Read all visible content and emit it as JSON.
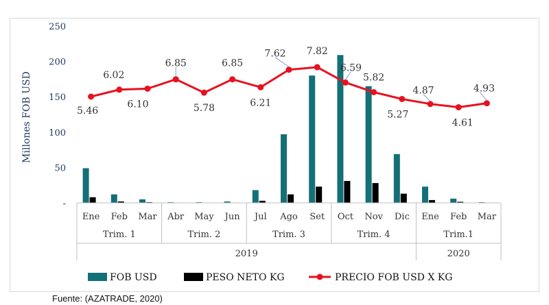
{
  "source_note": "Fuente: (AZATRADE, 2020)",
  "colors": {
    "fob": "#137076",
    "peso": "#000000",
    "precio": "#e8111f",
    "axis_text": "#1f3864",
    "label_text": "#333333",
    "callout": "#7f9fc9"
  },
  "chart_data": {
    "type": "bar",
    "ylabel": "Millones FOB USD",
    "ylim": [
      0,
      250
    ],
    "yticks": [
      0,
      50,
      100,
      150,
      200,
      250
    ],
    "grid": false,
    "legend_position": "bottom",
    "categories": [
      "Ene",
      "Feb",
      "Mar",
      "Abr",
      "May",
      "Jun",
      "Jul",
      "Ago",
      "Set",
      "Oct",
      "Nov",
      "Dic",
      "Ene",
      "Feb",
      "Mar"
    ],
    "quarters": [
      {
        "label": "Trim. 1",
        "count": 3
      },
      {
        "label": "Trim. 2",
        "count": 3
      },
      {
        "label": "Trim. 3",
        "count": 3
      },
      {
        "label": "Trim. 4",
        "count": 3
      },
      {
        "label": "Trim.1",
        "count": 3
      }
    ],
    "years": [
      {
        "label": "2019",
        "count": 12
      },
      {
        "label": "2020",
        "count": 3
      }
    ],
    "series": [
      {
        "name": "FOB USD",
        "kind": "bar",
        "values": [
          49,
          12,
          5,
          1,
          1,
          2,
          18,
          97,
          180,
          209,
          165,
          69,
          23,
          6,
          1
        ]
      },
      {
        "name": "PESO NETO KG",
        "kind": "bar",
        "values": [
          8,
          2,
          1,
          0.5,
          0.5,
          0.5,
          3,
          12,
          23,
          31,
          28,
          13,
          4,
          1.5,
          0.5
        ]
      },
      {
        "name": "PRECIO FOB USD X KG",
        "kind": "line",
        "values": [
          5.46,
          6.02,
          6.1,
          6.85,
          5.78,
          6.85,
          6.21,
          7.62,
          7.82,
          6.59,
          5.82,
          5.27,
          4.87,
          4.61,
          4.93
        ]
      }
    ],
    "line_labels": [
      "5.46",
      "6.02",
      "6.10",
      "6.85",
      "5.78",
      "6.85",
      "6.21",
      "7.62",
      "7.82",
      "6.59",
      "5.82",
      "5.27",
      "4.87",
      "4.61",
      "4.93"
    ]
  }
}
